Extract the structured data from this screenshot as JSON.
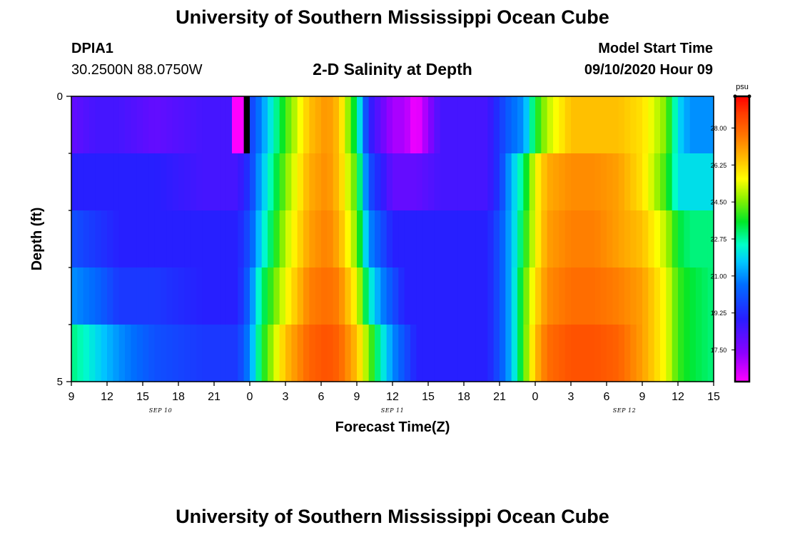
{
  "header": {
    "title": "University of Southern Mississippi Ocean Cube",
    "footer_title": "University of Southern Mississippi Ocean Cube",
    "station_id": "DPIA1",
    "station_coords": "30.2500N 88.0750W",
    "plot_subtitle": "2-D Salinity at Depth",
    "model_start_label": "Model Start Time",
    "model_start_value": "09/10/2020 Hour 09"
  },
  "chart_data": {
    "type": "heatmap",
    "title": "2-D Salinity at Depth",
    "xlabel": "Forecast Time(Z)",
    "ylabel": "Depth (ft)",
    "x_ticks": [
      "9",
      "12",
      "15",
      "18",
      "21",
      "0",
      "3",
      "6",
      "9",
      "12",
      "15",
      "18",
      "21",
      "0",
      "3",
      "6",
      "9",
      "12",
      "15"
    ],
    "date_labels": [
      {
        "label": "SEP 10",
        "hour_offset": 7.5
      },
      {
        "label": "SEP 11",
        "hour_offset": 27
      },
      {
        "label": "SEP 12",
        "hour_offset": 46.5
      }
    ],
    "y_ticks": [
      "0",
      "5"
    ],
    "y_minor_count": 5,
    "ylim": [
      0,
      5
    ],
    "x_hours": [
      0,
      54
    ],
    "colorbar": {
      "unit": "psu",
      "min": 16.0,
      "max": 29.5,
      "ticks": [
        "28.00",
        "26.25",
        "24.50",
        "22.75",
        "21.00",
        "19.25",
        "17.50"
      ],
      "tick_values": [
        28.0,
        26.25,
        24.5,
        22.75,
        21.0,
        19.25,
        17.5
      ]
    },
    "depth_layers": [
      0,
      1,
      2,
      3,
      4
    ],
    "keyframes_hours": [
      0,
      2,
      4,
      7,
      11,
      14,
      15,
      16,
      18,
      20,
      21.5,
      22.5,
      24,
      25,
      26,
      27,
      28,
      29,
      31,
      34,
      35,
      36,
      37,
      38,
      39,
      40,
      42,
      44,
      46,
      48,
      50,
      51,
      52,
      54
    ],
    "salinity_layers": [
      [
        18.0,
        18.5,
        18.5,
        18.0,
        18.5,
        18.5,
        19.5,
        21.0,
        24.0,
        26.5,
        27.2,
        26.5,
        23.0,
        19.0,
        18.0,
        17.0,
        17.0,
        16.0,
        18.5,
        18.5,
        18.5,
        19.5,
        20.5,
        21.0,
        23.5,
        25.0,
        26.5,
        26.5,
        26.5,
        26.0,
        24.5,
        22.0,
        21.0,
        21.0
      ],
      [
        19.0,
        19.0,
        19.0,
        19.0,
        18.5,
        18.5,
        19.5,
        21.5,
        24.5,
        26.8,
        27.3,
        26.5,
        24.0,
        20.0,
        19.0,
        18.0,
        18.0,
        18.0,
        18.5,
        18.5,
        18.5,
        19.5,
        21.5,
        23.0,
        25.5,
        26.8,
        27.3,
        27.3,
        27.0,
        26.0,
        24.0,
        22.0,
        22.0,
        22.0
      ],
      [
        20.0,
        19.5,
        19.0,
        19.0,
        19.0,
        19.0,
        20.0,
        22.0,
        25.0,
        27.0,
        27.5,
        26.8,
        24.5,
        21.0,
        20.0,
        19.0,
        19.0,
        19.0,
        19.0,
        19.0,
        19.0,
        20.0,
        21.5,
        23.5,
        25.5,
        27.0,
        27.5,
        27.5,
        27.0,
        26.5,
        25.0,
        23.5,
        23.0,
        23.0
      ],
      [
        21.0,
        20.5,
        19.5,
        19.5,
        19.0,
        19.0,
        20.5,
        23.0,
        25.5,
        27.5,
        27.8,
        27.5,
        25.5,
        22.5,
        21.0,
        20.0,
        19.0,
        19.0,
        19.0,
        19.0,
        19.0,
        20.0,
        21.5,
        24.0,
        26.0,
        27.3,
        27.8,
        27.8,
        27.5,
        27.0,
        25.5,
        24.0,
        23.5,
        23.0
      ],
      [
        23.0,
        22.0,
        21.0,
        20.0,
        19.5,
        19.5,
        21.0,
        23.5,
        26.5,
        28.0,
        28.3,
        28.0,
        26.5,
        24.5,
        22.5,
        21.0,
        20.0,
        19.0,
        19.0,
        19.0,
        19.0,
        20.0,
        21.5,
        24.0,
        26.5,
        27.8,
        28.3,
        28.3,
        28.0,
        27.0,
        25.5,
        24.0,
        23.5,
        23.0
      ]
    ],
    "surface_gap_hour": 14.5,
    "surface_pink_range_hours": [
      13.5,
      14.5
    ],
    "surface_pink_value": 16.0
  }
}
